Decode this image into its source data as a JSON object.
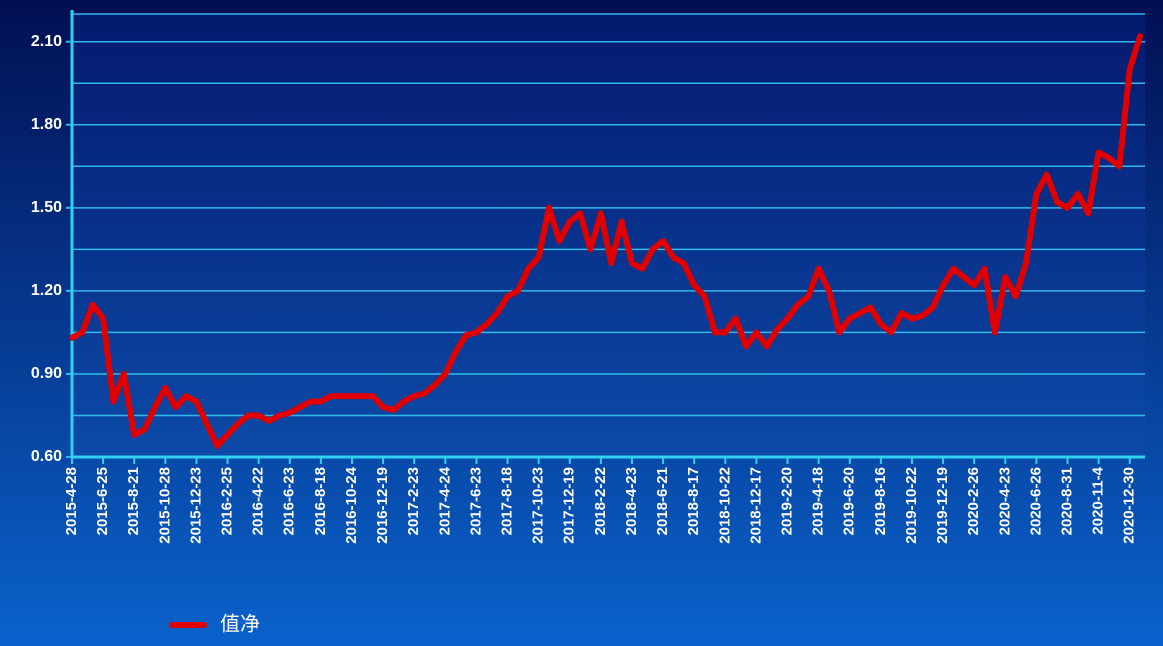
{
  "chart_data": {
    "type": "line",
    "categories": [
      "2015-4-28",
      null,
      null,
      "2015-6-25",
      null,
      null,
      "2015-8-21",
      null,
      null,
      "2015-10-28",
      null,
      null,
      "2015-12-23",
      null,
      null,
      "2016-2-25",
      null,
      null,
      "2016-4-22",
      null,
      null,
      "2016-6-23",
      null,
      null,
      "2016-8-18",
      null,
      null,
      "2016-10-24",
      null,
      null,
      "2016-12-19",
      null,
      null,
      "2017-2-23",
      null,
      null,
      "2017-4-24",
      null,
      null,
      "2017-6-23",
      null,
      null,
      "2017-8-18",
      null,
      null,
      "2017-10-23",
      null,
      null,
      "2017-12-19",
      null,
      null,
      "2018-2-22",
      null,
      null,
      "2018-4-23",
      null,
      null,
      "2018-6-21",
      null,
      null,
      "2018-8-17",
      null,
      null,
      "2018-10-22",
      null,
      null,
      "2018-12-17",
      null,
      null,
      "2019-2-20",
      null,
      null,
      "2019-4-18",
      null,
      null,
      "2019-6-20",
      null,
      null,
      "2019-8-16",
      null,
      null,
      "2019-10-22",
      null,
      null,
      "2019-12-19",
      null,
      null,
      "2020-2-26",
      null,
      null,
      "2020-4-23",
      null,
      null,
      "2020-6-26",
      null,
      null,
      "2020-8-31",
      null,
      null,
      "2020-11-4",
      null,
      null,
      "2020-12-30",
      null
    ],
    "series": [
      {
        "name": "值净",
        "color": "#e00000",
        "values": [
          1.03,
          1.05,
          1.15,
          1.1,
          0.8,
          0.9,
          0.68,
          0.7,
          0.78,
          0.85,
          0.78,
          0.82,
          0.8,
          0.72,
          0.64,
          0.68,
          0.72,
          0.75,
          0.75,
          0.73,
          0.75,
          0.76,
          0.78,
          0.8,
          0.8,
          0.82,
          0.82,
          0.82,
          0.82,
          0.82,
          0.78,
          0.77,
          0.8,
          0.82,
          0.83,
          0.86,
          0.9,
          0.98,
          1.04,
          1.05,
          1.08,
          1.12,
          1.18,
          1.2,
          1.28,
          1.32,
          1.5,
          1.38,
          1.45,
          1.48,
          1.35,
          1.48,
          1.3,
          1.45,
          1.3,
          1.28,
          1.35,
          1.38,
          1.32,
          1.3,
          1.22,
          1.18,
          1.05,
          1.05,
          1.1,
          1.0,
          1.05,
          1.0,
          1.06,
          1.1,
          1.15,
          1.18,
          1.28,
          1.2,
          1.05,
          1.1,
          1.12,
          1.14,
          1.08,
          1.05,
          1.12,
          1.1,
          1.11,
          1.14,
          1.22,
          1.28,
          1.25,
          1.22,
          1.28,
          1.05,
          1.25,
          1.18,
          1.3,
          1.55,
          1.62,
          1.52,
          1.5,
          1.55,
          1.48,
          1.7,
          1.68,
          1.65,
          2.0,
          2.12
        ]
      }
    ],
    "ylim": [
      0.6,
      2.2
    ],
    "yticks": [
      {
        "value": 0.6,
        "label": "0.60"
      },
      {
        "value": 0.9,
        "label": "0.90"
      },
      {
        "value": 1.2,
        "label": "1.20"
      },
      {
        "value": 1.5,
        "label": "1.50"
      },
      {
        "value": 1.8,
        "label": "1.80"
      },
      {
        "value": 2.1,
        "label": "2.10"
      }
    ],
    "yminor": [
      0.75,
      1.05,
      1.35,
      1.65,
      1.95,
      2.2
    ],
    "grid": true,
    "legend": "bottom-left"
  }
}
